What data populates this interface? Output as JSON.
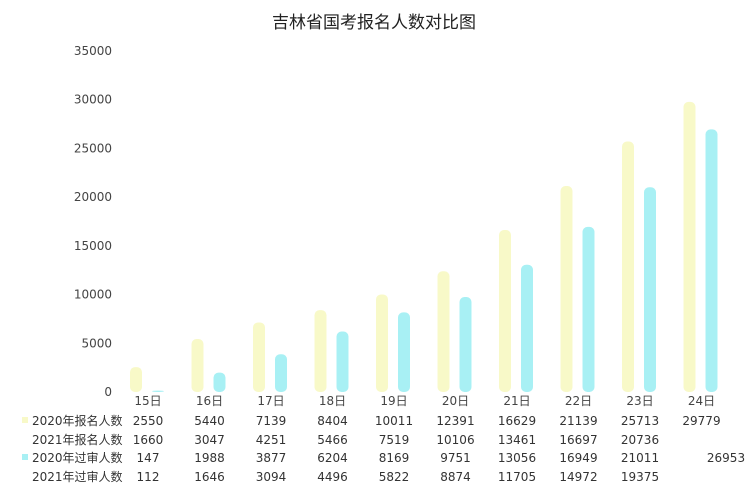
{
  "colors": {
    "s2020_signup": "#f8f9c8",
    "s2020_review": "#a8f0f4"
  },
  "chart_data": {
    "type": "bar",
    "title": "吉林省国考报名人数对比图",
    "categories": [
      "15日",
      "16日",
      "17日",
      "18日",
      "19日",
      "20日",
      "21日",
      "22日",
      "23日",
      "24日"
    ],
    "ylim": [
      0,
      35000
    ],
    "yticks": [
      "0",
      "5000",
      "10000",
      "15000",
      "20000",
      "25000",
      "30000",
      "35000"
    ],
    "grid": false,
    "legend": "data-table-left",
    "series": [
      {
        "name": "2020年报名人数",
        "values": [
          2550,
          5440,
          7139,
          8404,
          10011,
          12391,
          16629,
          21139,
          25713,
          29779
        ],
        "display": [
          "2550",
          "5440",
          "7139",
          "8404",
          "10011",
          "12391",
          "16629",
          "21139",
          "25713",
          "29779"
        ],
        "drawn": true
      },
      {
        "name": "2021年报名人数",
        "values": [
          1660,
          3047,
          4251,
          5466,
          7519,
          10106,
          13461,
          16697,
          20736,
          null
        ],
        "display": [
          "1660",
          "3047",
          "4251",
          "5466",
          "7519",
          "10106",
          "13461",
          "16697",
          "20736",
          ""
        ],
        "drawn": false
      },
      {
        "name": "2020年过审人数",
        "values": [
          147,
          1988,
          3877,
          6204,
          8169,
          9751,
          13056,
          16949,
          21011,
          26953
        ],
        "display": [
          "147",
          "1988",
          "3877",
          "6204",
          "8169",
          "9751",
          "13056",
          "16949",
          "21011",
          "26953"
        ],
        "drawn": true
      },
      {
        "name": "2021年过审人数",
        "values": [
          112,
          1646,
          3094,
          4496,
          5822,
          8874,
          11705,
          14972,
          19375,
          null
        ],
        "display": [
          "112",
          "1646",
          "3094",
          "4496",
          "5822",
          "8874",
          "11705",
          "14972",
          "19375",
          ""
        ],
        "drawn": false
      }
    ]
  }
}
